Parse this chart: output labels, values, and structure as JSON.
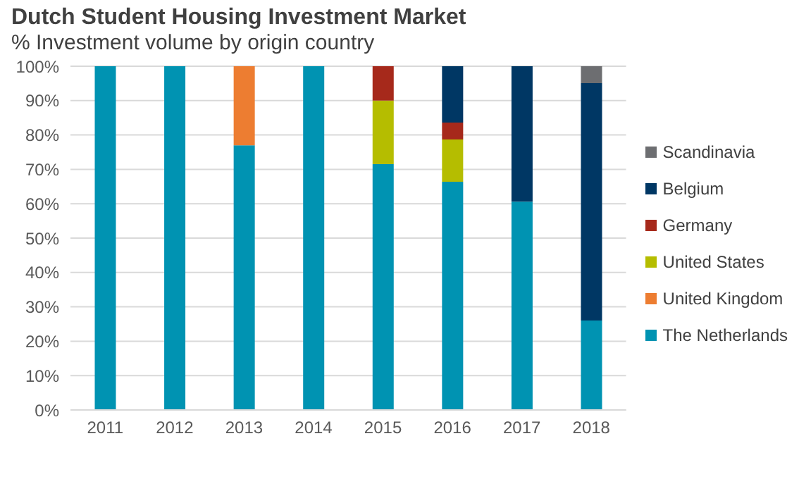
{
  "chart_data": {
    "type": "bar",
    "title": "Dutch Student Housing Investment Market",
    "subtitle": "% Investment volume by origin country",
    "categories": [
      "2011",
      "2012",
      "2013",
      "2014",
      "2015",
      "2016",
      "2017",
      "2018"
    ],
    "stacked": true,
    "series": [
      {
        "name": "The Netherlands",
        "color": "#0093b2",
        "values": [
          100,
          100,
          77,
          100,
          71.5,
          66.4,
          60.6,
          26
        ]
      },
      {
        "name": "United Kingdom",
        "color": "#ed7d31",
        "values": [
          0,
          0,
          23,
          0,
          0,
          0,
          0,
          0
        ]
      },
      {
        "name": "United States",
        "color": "#b5bd00",
        "values": [
          0,
          0,
          0,
          0,
          18.5,
          12.3,
          0,
          0
        ]
      },
      {
        "name": "Germany",
        "color": "#a6291b",
        "values": [
          0,
          0,
          0,
          0,
          10,
          4.9,
          0,
          0
        ]
      },
      {
        "name": "Belgium",
        "color": "#003764",
        "values": [
          0,
          0,
          0,
          0,
          0,
          16.4,
          39.4,
          69.1
        ]
      },
      {
        "name": "Scandinavia",
        "color": "#6d6e71",
        "values": [
          0,
          0,
          0,
          0,
          0,
          0,
          0,
          4.9
        ]
      }
    ],
    "ylim": [
      0,
      100
    ],
    "yticks": [
      {
        "value": 0,
        "label": "0%"
      },
      {
        "value": 10,
        "label": "10%"
      },
      {
        "value": 20,
        "label": "20%"
      },
      {
        "value": 30,
        "label": "30%"
      },
      {
        "value": 40,
        "label": "40%"
      },
      {
        "value": 50,
        "label": "50%"
      },
      {
        "value": 60,
        "label": "60%"
      },
      {
        "value": 70,
        "label": "70%"
      },
      {
        "value": 80,
        "label": "80%"
      },
      {
        "value": 90,
        "label": "90%"
      },
      {
        "value": 100,
        "label": "100%"
      }
    ],
    "grid": "y",
    "legend": "right"
  }
}
